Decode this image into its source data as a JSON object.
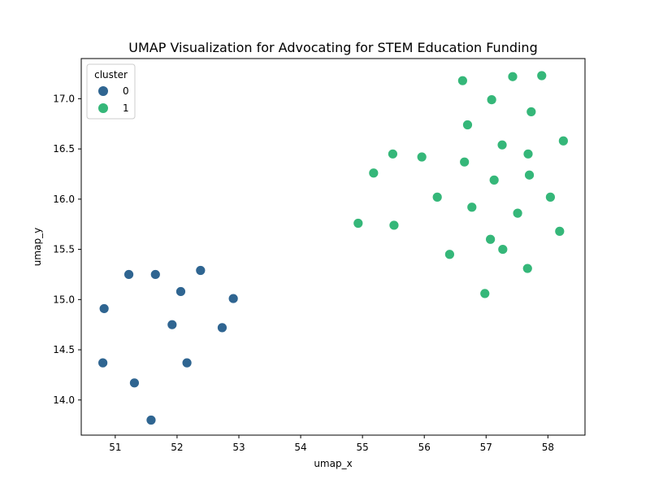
{
  "chart_data": {
    "type": "scatter",
    "title": "UMAP Visualization for Advocating for STEM Education Funding",
    "xlabel": "umap_x",
    "ylabel": "umap_y",
    "xlim": [
      50.45,
      58.6
    ],
    "ylim": [
      13.65,
      17.4
    ],
    "xticks": [
      51,
      52,
      53,
      54,
      55,
      56,
      57,
      58
    ],
    "yticks": [
      14.0,
      14.5,
      15.0,
      15.5,
      16.0,
      16.5,
      17.0
    ],
    "grid": false,
    "legend": {
      "title": "cluster",
      "placement": "top-left"
    },
    "series": [
      {
        "name": "0",
        "color": "#2f6591",
        "points": [
          [
            50.82,
            14.91
          ],
          [
            50.8,
            14.37
          ],
          [
            51.22,
            15.25
          ],
          [
            51.31,
            14.17
          ],
          [
            51.58,
            13.8
          ],
          [
            51.65,
            15.25
          ],
          [
            51.92,
            14.75
          ],
          [
            52.06,
            15.08
          ],
          [
            52.16,
            14.37
          ],
          [
            52.38,
            15.29
          ],
          [
            52.73,
            14.72
          ],
          [
            52.91,
            15.01
          ]
        ]
      },
      {
        "name": "1",
        "color": "#35b779",
        "points": [
          [
            54.93,
            15.76
          ],
          [
            55.18,
            16.26
          ],
          [
            55.49,
            16.45
          ],
          [
            55.51,
            15.74
          ],
          [
            55.96,
            16.42
          ],
          [
            56.21,
            16.02
          ],
          [
            56.41,
            15.45
          ],
          [
            56.62,
            17.18
          ],
          [
            56.65,
            16.37
          ],
          [
            56.7,
            16.74
          ],
          [
            56.77,
            15.92
          ],
          [
            56.98,
            15.06
          ],
          [
            57.07,
            15.6
          ],
          [
            57.09,
            16.99
          ],
          [
            57.13,
            16.19
          ],
          [
            57.26,
            16.54
          ],
          [
            57.27,
            15.5
          ],
          [
            57.43,
            17.22
          ],
          [
            57.51,
            15.86
          ],
          [
            57.67,
            15.31
          ],
          [
            57.68,
            16.45
          ],
          [
            57.7,
            16.24
          ],
          [
            57.73,
            16.87
          ],
          [
            57.9,
            17.23
          ],
          [
            58.04,
            16.02
          ],
          [
            58.19,
            15.68
          ],
          [
            58.25,
            16.58
          ]
        ]
      }
    ]
  }
}
